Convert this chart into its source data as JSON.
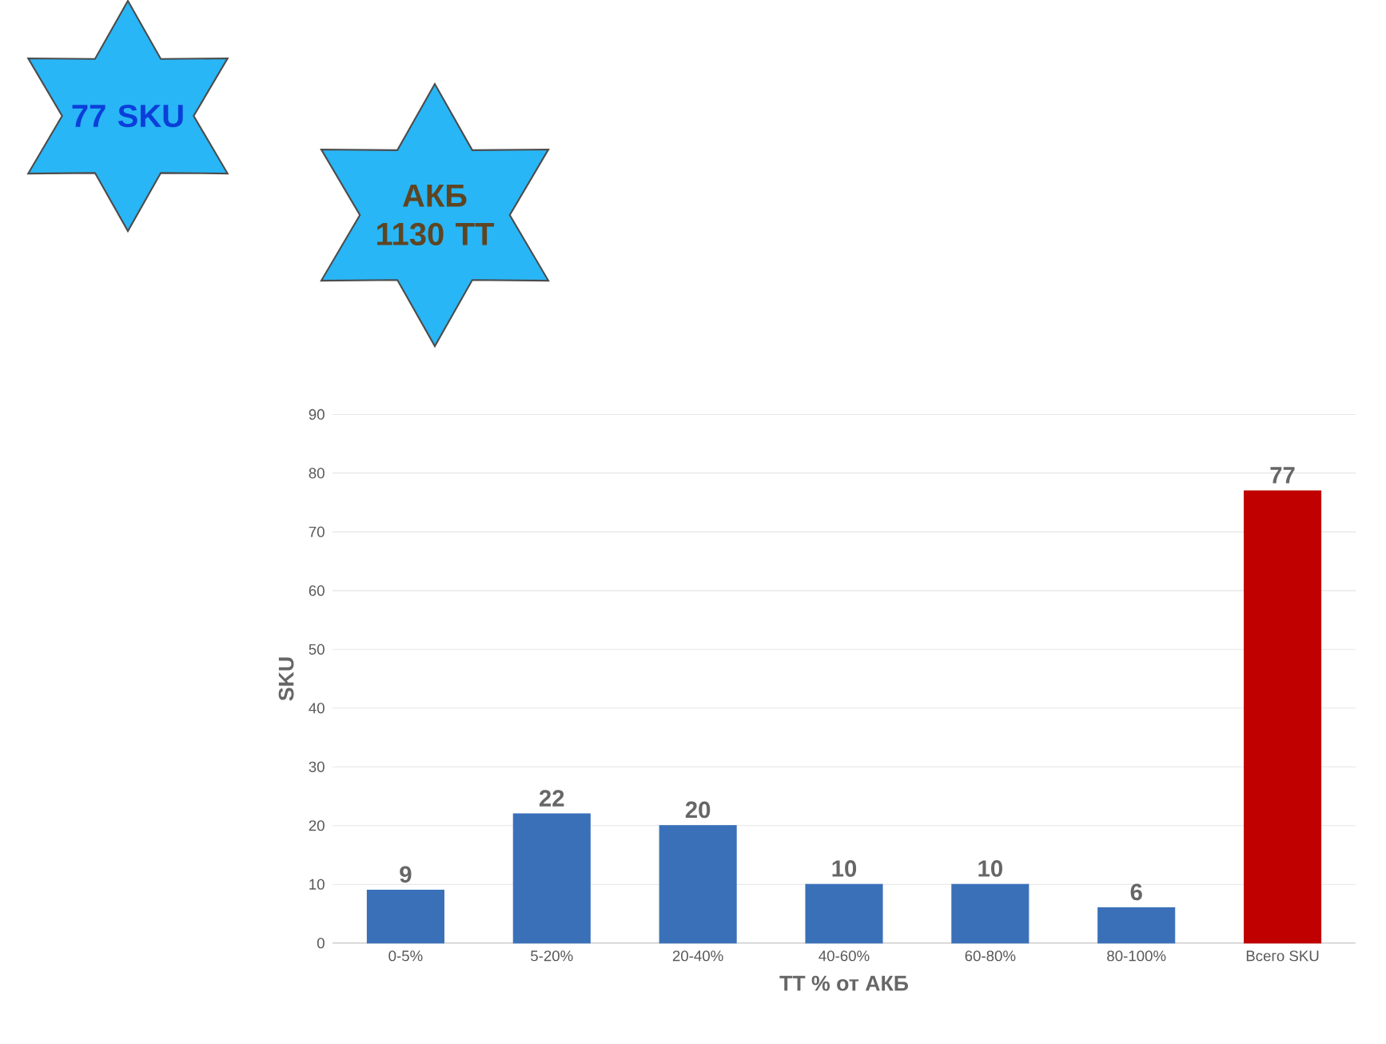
{
  "chart_data": {
    "type": "bar",
    "xlabel": "ТТ % от АКБ",
    "ylabel": "SKU",
    "categories": [
      "0-5%",
      "5-20%",
      "20-40%",
      "40-60%",
      "60-80%",
      "80-100%",
      "Всего SKU"
    ],
    "values": [
      9,
      22,
      20,
      10,
      10,
      6,
      77
    ],
    "colors": [
      "#3a70b8",
      "#3a70b8",
      "#3a70b8",
      "#3a70b8",
      "#3a70b8",
      "#3a70b8",
      "#c00000"
    ],
    "ylim": [
      0,
      90
    ],
    "yticks": [
      0,
      10,
      20,
      30,
      40,
      50,
      60,
      70,
      80,
      90
    ],
    "grid": "y",
    "data_labels": true,
    "annotations": [
      "77 SKU",
      "АКБ 1130 ТТ"
    ]
  }
}
